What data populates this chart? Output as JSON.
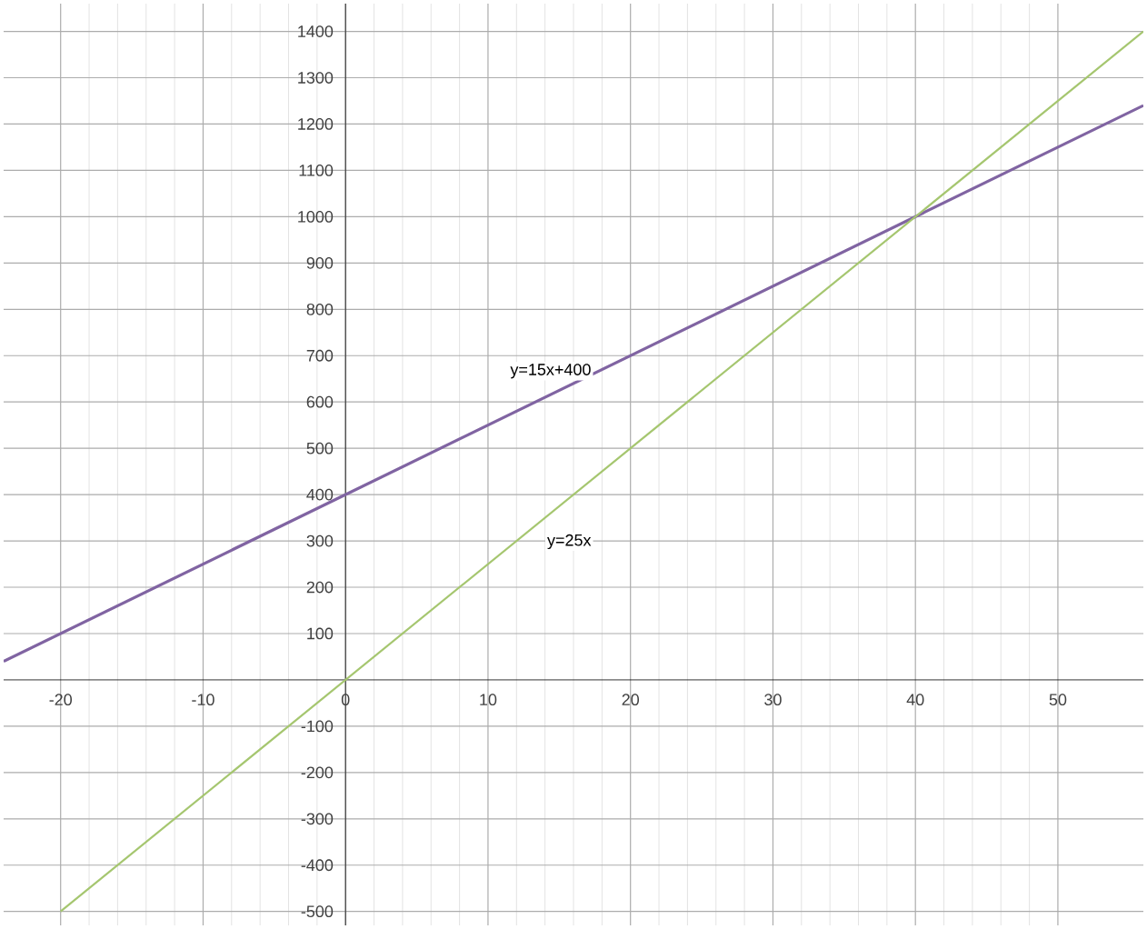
{
  "chart_data": {
    "type": "line",
    "series": [
      {
        "name": "y=15x+400",
        "x": [
          -24,
          56
        ],
        "values": [
          40,
          1240
        ],
        "color": "#8064a2"
      },
      {
        "name": "y=25x",
        "x": [
          -20,
          56
        ],
        "values": [
          -500,
          1400
        ],
        "color": "#a5c66f"
      }
    ],
    "xlim": [
      -24,
      56
    ],
    "ylim": [
      -530,
      1460
    ],
    "xticks": [
      -20,
      -10,
      0,
      10,
      20,
      30,
      40,
      50
    ],
    "yticks": [
      -500,
      -400,
      -300,
      -200,
      -100,
      100,
      200,
      300,
      400,
      500,
      600,
      700,
      800,
      900,
      1000,
      1100,
      1200,
      1300,
      1400
    ],
    "grid": true,
    "marker": "none",
    "line_style": "solid"
  }
}
